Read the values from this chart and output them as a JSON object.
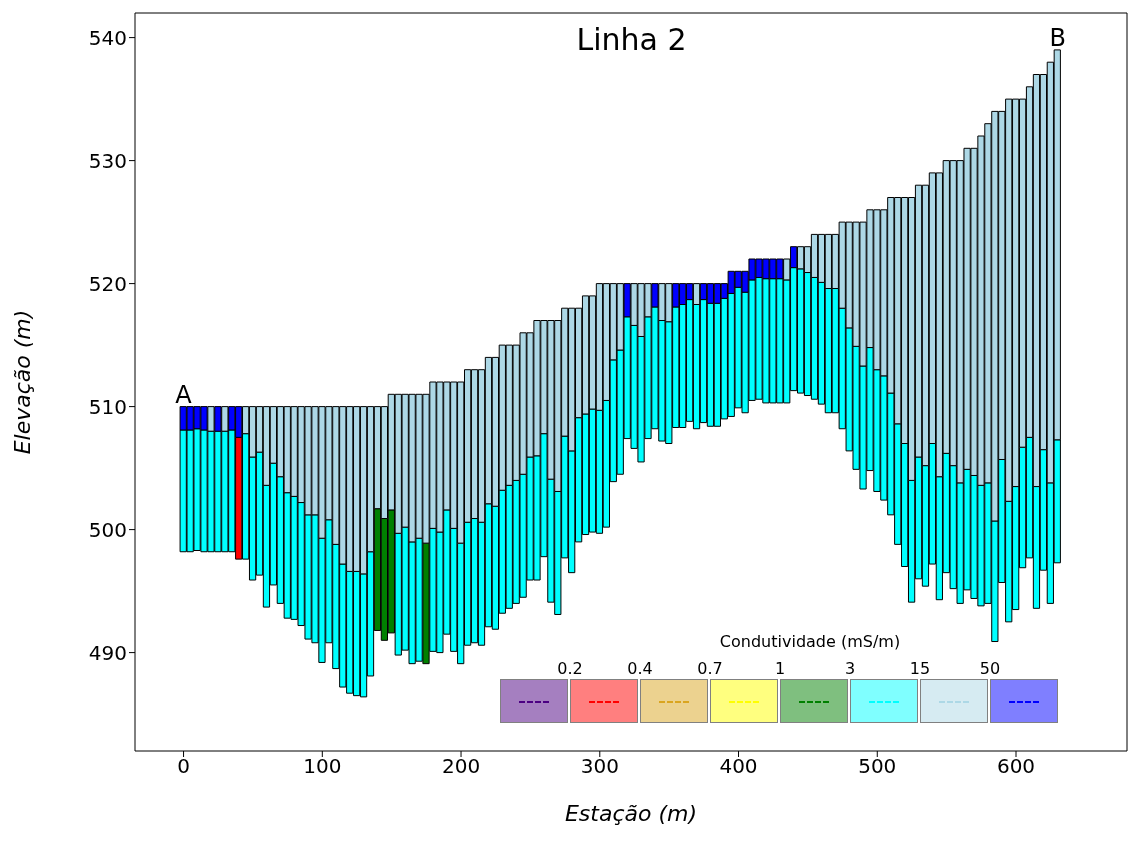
{
  "chart_data": {
    "type": "bar",
    "title": "Linha 2",
    "xlabel": "Estação (m)",
    "ylabel": "Elevação (m)",
    "legend_title": "Condutividade (mS/m)",
    "annotations": [
      {
        "text": "A",
        "x": 0,
        "y": 510
      },
      {
        "text": "B",
        "x": 630,
        "y": 539
      },
      "0.2",
      "0.4",
      "0.7",
      "1",
      "3",
      "15",
      "50"
    ],
    "x": [
      0,
      5,
      10,
      15,
      20,
      25,
      30,
      35,
      40,
      45,
      50,
      55,
      60,
      65,
      70,
      75,
      80,
      85,
      90,
      95,
      100,
      105,
      110,
      115,
      120,
      125,
      130,
      135,
      140,
      145,
      150,
      155,
      160,
      165,
      170,
      175,
      180,
      185,
      190,
      195,
      200,
      205,
      210,
      215,
      220,
      225,
      230,
      235,
      240,
      245,
      250,
      255,
      260,
      265,
      270,
      275,
      280,
      285,
      290,
      295,
      300,
      305,
      310,
      315,
      320,
      325,
      330,
      335,
      340,
      345,
      350,
      355,
      360,
      365,
      370,
      375,
      380,
      385,
      390,
      395,
      400,
      405,
      410,
      415,
      420,
      425,
      430,
      435,
      440,
      445,
      450,
      455,
      460,
      465,
      470,
      475,
      480,
      485,
      490,
      495,
      500,
      505,
      510,
      515,
      520,
      525,
      530,
      535,
      540,
      545,
      550,
      555,
      560,
      565,
      570,
      575,
      580,
      585,
      590,
      595,
      600,
      605,
      610,
      615,
      620,
      625,
      630
    ],
    "series": [
      {
        "color": "#4b0082",
        "values": [
          null,
          null,
          null,
          null,
          null,
          null,
          null,
          null,
          null,
          null,
          null,
          null,
          null,
          null,
          null,
          null,
          null,
          null,
          null,
          null,
          null,
          null,
          null,
          null,
          null,
          null,
          null,
          null,
          null,
          null,
          null,
          null,
          null,
          null,
          null,
          null,
          null,
          null,
          null,
          null,
          null,
          null,
          null,
          null,
          null,
          null,
          null,
          null,
          null,
          null,
          null,
          null,
          null,
          null,
          null,
          null,
          null,
          null,
          null,
          null,
          null,
          null,
          null,
          null,
          null,
          null,
          null,
          null,
          null,
          null,
          null,
          null,
          null,
          null,
          null,
          null,
          null,
          null,
          null,
          null,
          null,
          null,
          null,
          null,
          null,
          null,
          null,
          null,
          null,
          null,
          null,
          null,
          null,
          null,
          null,
          null,
          null,
          null,
          null,
          null,
          null,
          null,
          null,
          null,
          null,
          null,
          null,
          null,
          null,
          null,
          null,
          null,
          null,
          null,
          null,
          null,
          null,
          null,
          null,
          null,
          null,
          null,
          null,
          null,
          null,
          null,
          null
        ]
      },
      {
        "color": "#ff0000",
        "base": [
          null,
          null,
          null,
          null,
          null,
          null,
          null,
          null,
          497.6,
          null,
          null,
          null,
          null,
          null,
          null,
          null,
          null,
          null,
          null,
          null,
          null,
          null,
          null,
          null,
          null,
          null,
          null,
          null,
          null,
          null,
          null,
          null,
          null,
          null,
          null,
          null,
          null,
          null,
          null,
          null,
          null,
          null,
          null,
          null,
          null,
          null,
          null,
          null,
          null,
          null,
          null,
          null,
          null,
          null,
          null,
          null,
          null,
          null,
          null,
          null,
          null,
          null,
          null,
          null,
          null,
          null,
          null,
          null,
          null,
          null,
          null,
          null,
          null,
          null,
          null,
          null,
          null,
          null,
          null,
          null,
          null,
          null,
          null,
          null,
          null,
          null,
          null,
          null,
          null,
          null,
          null,
          null,
          null,
          null,
          null,
          null,
          null,
          null,
          null,
          null,
          null,
          null,
          null,
          null,
          null,
          null,
          null,
          null,
          null,
          null,
          null,
          null,
          null,
          null,
          null,
          null,
          null,
          null,
          null,
          null,
          null,
          null,
          null,
          null,
          null,
          null,
          null
        ],
        "values": [
          null,
          null,
          null,
          null,
          null,
          null,
          null,
          null,
          9.9,
          null,
          null,
          null,
          null,
          null,
          null,
          null,
          null,
          null,
          null,
          null,
          null,
          null,
          null,
          null,
          null,
          null,
          null,
          null,
          null,
          null,
          null,
          null,
          null,
          null,
          null,
          null,
          null,
          null,
          null,
          null,
          null,
          null,
          null,
          null,
          null,
          null,
          null,
          null,
          null,
          null,
          null,
          null,
          null,
          null,
          null,
          null,
          null,
          null,
          null,
          null,
          null,
          null,
          null,
          null,
          null,
          null,
          null,
          null,
          null,
          null,
          null,
          null,
          null,
          null,
          null,
          null,
          null,
          null,
          null,
          null,
          null,
          null,
          null,
          null,
          null,
          null,
          null,
          null,
          null,
          null,
          null,
          null,
          null,
          null,
          null,
          null,
          null,
          null,
          null,
          null,
          null,
          null,
          null,
          null,
          null,
          null,
          null,
          null,
          null,
          null,
          null,
          null,
          null,
          null,
          null,
          null,
          null,
          null,
          null,
          null,
          null,
          null,
          null,
          null,
          null,
          null,
          null
        ]
      },
      {
        "color": "#daa520",
        "values": [
          null,
          null,
          null,
          null,
          null,
          null,
          null,
          null,
          null,
          null,
          null,
          null,
          null,
          null,
          null,
          null,
          null,
          null,
          null,
          null,
          null,
          null,
          null,
          null,
          null,
          null,
          null,
          null,
          null,
          null,
          null,
          null,
          null,
          null,
          null,
          null,
          null,
          null,
          null,
          null,
          null,
          null,
          null,
          null,
          null,
          null,
          null,
          null,
          null,
          null,
          null,
          null,
          null,
          null,
          null,
          null,
          null,
          null,
          null,
          null,
          null,
          null,
          null,
          null,
          null,
          null,
          null,
          null,
          null,
          null,
          null,
          null,
          null,
          null,
          null,
          null,
          null,
          null,
          null,
          null,
          null,
          null,
          null,
          null,
          null,
          null,
          null,
          null,
          null,
          null,
          null,
          null,
          null,
          null,
          null,
          null,
          null,
          null,
          null,
          null,
          null,
          null,
          null,
          null,
          null,
          null,
          null,
          null,
          null,
          null,
          null,
          null,
          null,
          null,
          null,
          null,
          null,
          null,
          null,
          null,
          null,
          null,
          null,
          null,
          null,
          null,
          null
        ]
      },
      {
        "color": "#ffff00",
        "values": [
          null,
          null,
          null,
          null,
          null,
          null,
          null,
          null,
          null,
          null,
          null,
          null,
          null,
          null,
          null,
          null,
          null,
          null,
          null,
          null,
          null,
          null,
          null,
          null,
          null,
          null,
          null,
          null,
          null,
          null,
          null,
          null,
          null,
          null,
          null,
          null,
          null,
          null,
          null,
          null,
          null,
          null,
          null,
          null,
          null,
          null,
          null,
          null,
          null,
          null,
          null,
          null,
          null,
          null,
          null,
          null,
          null,
          null,
          null,
          null,
          null,
          null,
          null,
          null,
          null,
          null,
          null,
          null,
          null,
          null,
          null,
          null,
          null,
          null,
          null,
          null,
          null,
          null,
          null,
          null,
          null,
          null,
          null,
          null,
          null,
          null,
          null,
          null,
          null,
          null,
          null,
          null,
          null,
          null,
          null,
          null,
          null,
          null,
          null,
          null,
          null,
          null,
          null,
          null,
          null,
          null,
          null,
          null,
          null,
          null,
          null,
          null,
          null,
          null,
          null,
          null,
          null,
          null,
          null,
          null,
          null,
          null,
          null,
          null,
          null,
          null,
          null
        ]
      },
      {
        "color": "#008000",
        "base": [
          null,
          null,
          null,
          null,
          null,
          null,
          null,
          null,
          null,
          null,
          null,
          null,
          null,
          null,
          null,
          null,
          null,
          null,
          null,
          null,
          null,
          null,
          null,
          null,
          null,
          null,
          null,
          null,
          491.8,
          491.0,
          491.6,
          null,
          null,
          null,
          null,
          489.1,
          null,
          null,
          null,
          null,
          null,
          null,
          null,
          null,
          null,
          null,
          null,
          null,
          null,
          null,
          null,
          null,
          null,
          null,
          null,
          null,
          null,
          null,
          null,
          null,
          null,
          null,
          null,
          null,
          null,
          null,
          null,
          null,
          null,
          null,
          null,
          null,
          null,
          null,
          null,
          null,
          null,
          null,
          null,
          null,
          null,
          null,
          null,
          null,
          null,
          null,
          null,
          null,
          null,
          null,
          null,
          null,
          null,
          null,
          null,
          null,
          null,
          null,
          null,
          null,
          null,
          null,
          null,
          null,
          null,
          null,
          null,
          null,
          null,
          null,
          null,
          null,
          null,
          null,
          null,
          null,
          null,
          null,
          null,
          null,
          null,
          null,
          null,
          null,
          null,
          null,
          null
        ],
        "values": [
          null,
          null,
          null,
          null,
          null,
          null,
          null,
          null,
          null,
          null,
          null,
          null,
          null,
          null,
          null,
          null,
          null,
          null,
          null,
          null,
          null,
          null,
          null,
          null,
          null,
          null,
          null,
          null,
          9.9,
          9.9,
          10.0,
          null,
          null,
          null,
          null,
          9.8,
          null,
          null,
          null,
          null,
          null,
          null,
          null,
          null,
          null,
          null,
          null,
          null,
          null,
          null,
          null,
          null,
          null,
          null,
          null,
          null,
          null,
          null,
          null,
          null,
          null,
          null,
          null,
          null,
          null,
          null,
          null,
          null,
          null,
          null,
          null,
          null,
          null,
          null,
          null,
          null,
          null,
          null,
          null,
          null,
          null,
          null,
          null,
          null,
          null,
          null,
          null,
          null,
          null,
          null,
          null,
          null,
          null,
          null,
          null,
          null,
          null,
          null,
          null,
          null,
          null,
          null,
          null,
          null,
          null,
          null,
          null,
          null,
          null,
          null,
          null,
          null,
          null,
          null,
          null,
          null,
          null,
          null,
          null,
          null,
          null,
          null,
          null,
          null,
          null,
          null,
          null
        ]
      },
      {
        "color": "#00ffff",
        "base": [
          498.2,
          498.2,
          498.3,
          498.2,
          498.2,
          498.2,
          498.2,
          498.2,
          null,
          497.6,
          495.9,
          496.3,
          493.7,
          495.5,
          494.0,
          492.8,
          492.7,
          492.2,
          491.1,
          490.8,
          489.2,
          490.8,
          488.7,
          487.2,
          486.7,
          486.5,
          486.4,
          488.1,
          null,
          null,
          null,
          489.8,
          490.2,
          489.1,
          489.3,
          null,
          490.1,
          490.0,
          491.5,
          490.1,
          489.1,
          490.6,
          490.8,
          490.6,
          492.1,
          491.9,
          493.2,
          493.6,
          494.0,
          494.5,
          495.9,
          495.9,
          497.8,
          494.1,
          493.1,
          497.7,
          496.5,
          499.0,
          499.6,
          499.8,
          499.7,
          500.2,
          503.9,
          504.5,
          507.4,
          506.6,
          505.5,
          507.4,
          508.2,
          507.2,
          507.0,
          508.3,
          508.3,
          508.8,
          508.2,
          508.7,
          508.4,
          508.4,
          509.0,
          509.2,
          509.9,
          509.5,
          510.5,
          510.6,
          510.3,
          510.3,
          510.3,
          510.3,
          511.3,
          511.1,
          510.9,
          510.6,
          510.2,
          509.5,
          509.5,
          508.2,
          506.4,
          504.9,
          503.3,
          504.8,
          503.1,
          502.4,
          501.2,
          498.8,
          497.0,
          494.1,
          496.0,
          495.4,
          497.2,
          494.3,
          496.5,
          495.2,
          494.0,
          495.1,
          494.4,
          493.8,
          494.0,
          490.9,
          495.7,
          492.5,
          493.5,
          496.9,
          497.7,
          493.6,
          496.7,
          494.0,
          497.3
        ],
        "values": [
          9.9,
          9.9,
          9.9,
          9.9,
          9.8,
          9.8,
          9.8,
          9.9,
          null,
          10.2,
          10.0,
          10.0,
          9.9,
          9.9,
          10.3,
          10.2,
          10.0,
          10.0,
          10.1,
          10.4,
          10.1,
          10.0,
          10.1,
          10.0,
          9.9,
          10.1,
          10.0,
          10.1,
          null,
          null,
          null,
          9.9,
          10.0,
          9.9,
          10.0,
          null,
          10.0,
          9.8,
          10.1,
          10.0,
          9.8,
          10.0,
          10.1,
          10.0,
          10.0,
          10.0,
          10.0,
          10.0,
          10.0,
          10.0,
          10.0,
          10.1,
          10.0,
          10.0,
          10.0,
          9.9,
          9.9,
          10.1,
          9.8,
          10.0,
          10.0,
          10.3,
          9.9,
          10.1,
          9.9,
          10.0,
          10.2,
          9.9,
          9.9,
          9.8,
          9.9,
          9.8,
          10.0,
          9.9,
          10.1,
          10.0,
          10.0,
          10.0,
          9.8,
          10.0,
          9.8,
          9.8,
          9.8,
          9.9,
          10.1,
          10.1,
          10.1,
          10.0,
          10.0,
          10.1,
          10.0,
          9.9,
          9.9,
          10.1,
          10.1,
          9.8,
          10.0,
          10.0,
          10.0,
          10.0,
          9.9,
          10.1,
          9.9,
          9.8,
          10.0,
          9.9,
          9.9,
          9.8,
          9.8,
          10.0,
          9.7,
          10.0,
          9.8,
          9.8,
          10.0,
          9.8,
          9.8,
          9.8,
          10.0,
          9.8,
          10.0,
          9.8,
          9.8,
          9.9,
          9.8,
          9.8,
          10.0
        ]
      },
      {
        "color": "#add8e6",
        "base": [
          null,
          null,
          null,
          null,
          508.0,
          null,
          508.0,
          null,
          null,
          507.8,
          505.9,
          506.3,
          503.6,
          505.4,
          504.3,
          503.0,
          502.7,
          502.2,
          501.2,
          501.2,
          499.3,
          500.8,
          498.8,
          497.2,
          496.6,
          496.6,
          496.4,
          498.2,
          501.7,
          500.9,
          501.6,
          499.7,
          500.2,
          499.0,
          499.3,
          498.9,
          500.1,
          499.8,
          501.6,
          500.1,
          498.9,
          500.6,
          500.9,
          500.6,
          502.1,
          501.9,
          503.2,
          503.6,
          504.0,
          504.5,
          505.9,
          506.0,
          507.8,
          504.1,
          503.1,
          507.6,
          506.4,
          509.1,
          509.4,
          509.8,
          509.7,
          510.5,
          513.8,
          514.6,
          null,
          516.6,
          515.7,
          517.3,
          null,
          517.0,
          516.9,
          null,
          null,
          null,
          518.3,
          null,
          null,
          null,
          null,
          null,
          null,
          null,
          null,
          null,
          null,
          null,
          null,
          520.3,
          null,
          521.2,
          520.9,
          520.5,
          520.1,
          519.6,
          519.6,
          518.0,
          516.4,
          514.9,
          513.3,
          514.8,
          513.0,
          512.5,
          511.1,
          508.6,
          507.0,
          504.0,
          505.9,
          505.2,
          507.0,
          504.3,
          506.2,
          505.2,
          503.8,
          504.9,
          504.4,
          503.6,
          503.8,
          500.7,
          505.7,
          502.3,
          503.5,
          506.7,
          507.5,
          503.5,
          506.5,
          503.8,
          507.3
        ],
        "values": [
          null,
          null,
          null,
          null,
          2.0,
          null,
          2.0,
          null,
          null,
          2.2,
          4.1,
          3.7,
          6.4,
          4.6,
          5.7,
          7.0,
          7.3,
          7.8,
          8.8,
          8.8,
          10.7,
          9.2,
          11.2,
          12.8,
          13.4,
          13.4,
          13.6,
          11.8,
          8.3,
          9.1,
          9.4,
          11.3,
          10.8,
          12.0,
          11.7,
          12.1,
          11.9,
          12.2,
          10.4,
          11.9,
          13.1,
          12.4,
          12.1,
          12.4,
          11.9,
          12.1,
          11.8,
          11.4,
          11.0,
          11.5,
          10.1,
          11.0,
          9.2,
          12.9,
          13.9,
          10.4,
          11.6,
          8.9,
          9.6,
          9.2,
          10.3,
          9.5,
          6.2,
          5.4,
          null,
          3.4,
          4.3,
          2.7,
          null,
          3.0,
          3.1,
          null,
          null,
          null,
          1.7,
          null,
          null,
          null,
          null,
          null,
          null,
          null,
          null,
          null,
          null,
          null,
          null,
          1.7,
          null,
          1.8,
          2.1,
          3.5,
          3.9,
          4.4,
          4.4,
          7.0,
          8.6,
          10.1,
          11.7,
          11.2,
          13.0,
          13.5,
          15.9,
          18.4,
          20.0,
          23.0,
          22.1,
          22.8,
          22.0,
          24.7,
          23.8,
          24.8,
          26.2,
          26.1,
          26.6,
          28.4,
          29.2,
          33.3,
          28.3,
          32.7,
          31.5,
          28.3,
          28.5,
          33.5,
          30.5,
          34.2,
          31.7
        ]
      },
      {
        "color": "#0000ff",
        "base": [
          508.1,
          508.1,
          508.2,
          508.1,
          null,
          508.0,
          null,
          508.1,
          507.5,
          null,
          null,
          null,
          null,
          null,
          null,
          null,
          null,
          null,
          null,
          null,
          null,
          null,
          null,
          null,
          null,
          null,
          null,
          null,
          null,
          null,
          null,
          null,
          null,
          null,
          null,
          null,
          null,
          null,
          null,
          null,
          null,
          null,
          null,
          null,
          null,
          null,
          null,
          null,
          null,
          null,
          null,
          null,
          null,
          null,
          null,
          null,
          null,
          null,
          null,
          null,
          null,
          null,
          null,
          null,
          517.3,
          null,
          null,
          null,
          518.1,
          null,
          null,
          518.1,
          518.3,
          518.7,
          null,
          518.7,
          518.4,
          518.4,
          518.8,
          519.2,
          519.7,
          519.3,
          520.3,
          520.5,
          520.4,
          520.4,
          520.4,
          null,
          521.3,
          null,
          null,
          null,
          null,
          null,
          null,
          null,
          null,
          null,
          null,
          null,
          null,
          null,
          null,
          null,
          null,
          null,
          null,
          null,
          null,
          null,
          null,
          null,
          null,
          null,
          null,
          null,
          null,
          null,
          null,
          null,
          null,
          null,
          null,
          null,
          null,
          null,
          null
        ],
        "values": [
          1.9,
          1.9,
          1.8,
          1.9,
          null,
          2.0,
          null,
          1.9,
          2.5,
          null,
          null,
          null,
          null,
          null,
          null,
          null,
          null,
          null,
          null,
          null,
          null,
          null,
          null,
          null,
          null,
          null,
          null,
          null,
          null,
          null,
          null,
          null,
          null,
          null,
          null,
          null,
          null,
          null,
          null,
          null,
          null,
          null,
          null,
          null,
          null,
          null,
          null,
          null,
          null,
          null,
          null,
          null,
          null,
          null,
          null,
          null,
          null,
          null,
          null,
          null,
          null,
          null,
          null,
          null,
          2.7,
          null,
          null,
          null,
          1.9,
          null,
          null,
          1.9,
          1.7,
          1.3,
          null,
          1.3,
          1.6,
          1.6,
          1.2,
          1.8,
          1.3,
          1.7,
          1.7,
          1.5,
          1.6,
          1.6,
          1.6,
          null,
          1.7,
          null,
          null,
          null,
          null,
          null,
          null,
          null,
          null,
          null,
          null,
          null,
          null,
          null,
          null,
          null,
          null,
          null,
          null,
          null,
          null,
          null,
          null,
          null,
          null,
          null,
          null,
          null,
          null,
          null,
          null,
          null,
          null,
          null,
          null,
          null,
          null,
          null,
          null
        ]
      }
    ],
    "xlim": [
      -35,
      680
    ],
    "xticks": [
      0,
      100,
      200,
      300,
      400,
      500,
      600
    ],
    "ylim": [
      482,
      542
    ],
    "yticks": [
      490,
      500,
      510,
      520,
      530,
      540
    ]
  }
}
